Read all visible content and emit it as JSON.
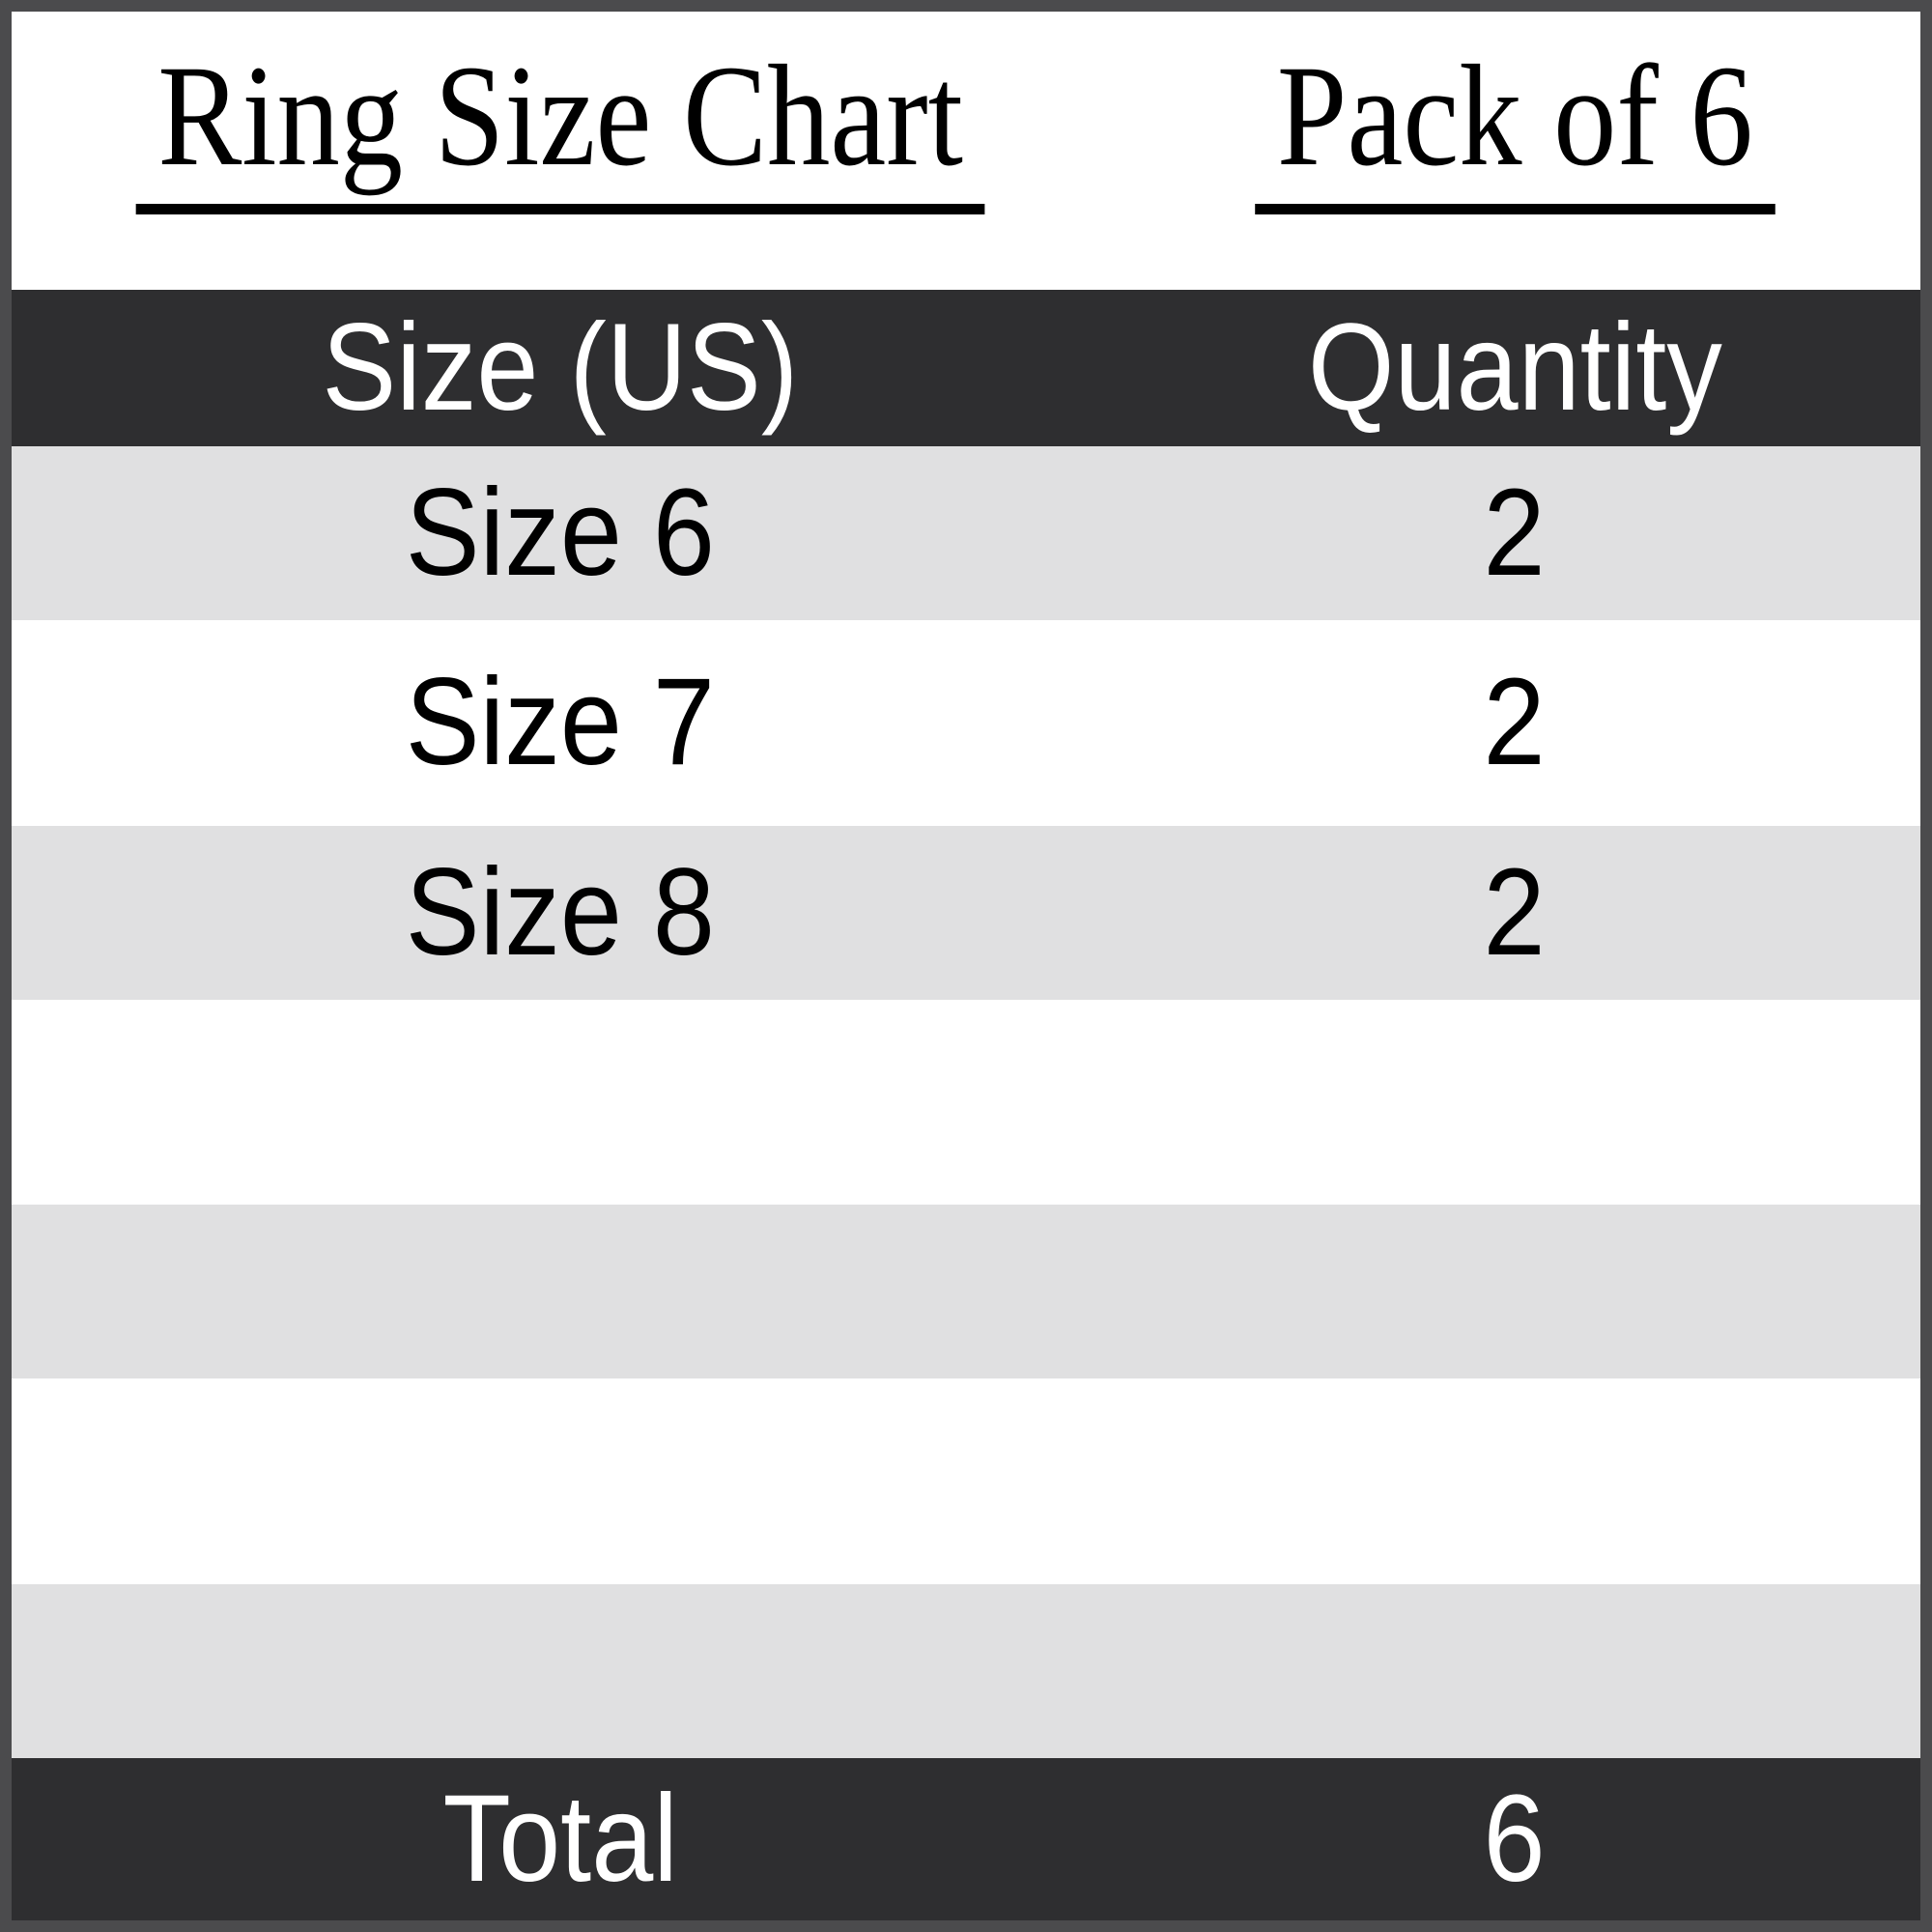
{
  "header": {
    "left_title": "Ring Size Chart",
    "right_title": "Pack of 6"
  },
  "table": {
    "columns": [
      "Size (US)",
      "Quantity"
    ],
    "rows": [
      {
        "size": "Size 6",
        "quantity": "2"
      },
      {
        "size": "Size 7",
        "quantity": "2"
      },
      {
        "size": "Size 8",
        "quantity": "2"
      },
      {
        "size": "",
        "quantity": ""
      },
      {
        "size": "",
        "quantity": ""
      },
      {
        "size": "",
        "quantity": ""
      },
      {
        "size": "",
        "quantity": ""
      }
    ],
    "footer": {
      "label": "Total",
      "value": "6"
    }
  },
  "colors": {
    "dark_row": "#2e2e30",
    "stripe_row": "#e0e0e1",
    "border": "#4b4b4d",
    "title_text": "#000000",
    "header_text": "#ffffff"
  },
  "chart_data": {
    "type": "table",
    "title": "Ring Size Chart",
    "subtitle": "Pack of 6",
    "columns": [
      "Size (US)",
      "Quantity"
    ],
    "rows": [
      [
        "Size 6",
        2
      ],
      [
        "Size 7",
        2
      ],
      [
        "Size 8",
        2
      ]
    ],
    "total": {
      "label": "Total",
      "value": 6
    }
  }
}
